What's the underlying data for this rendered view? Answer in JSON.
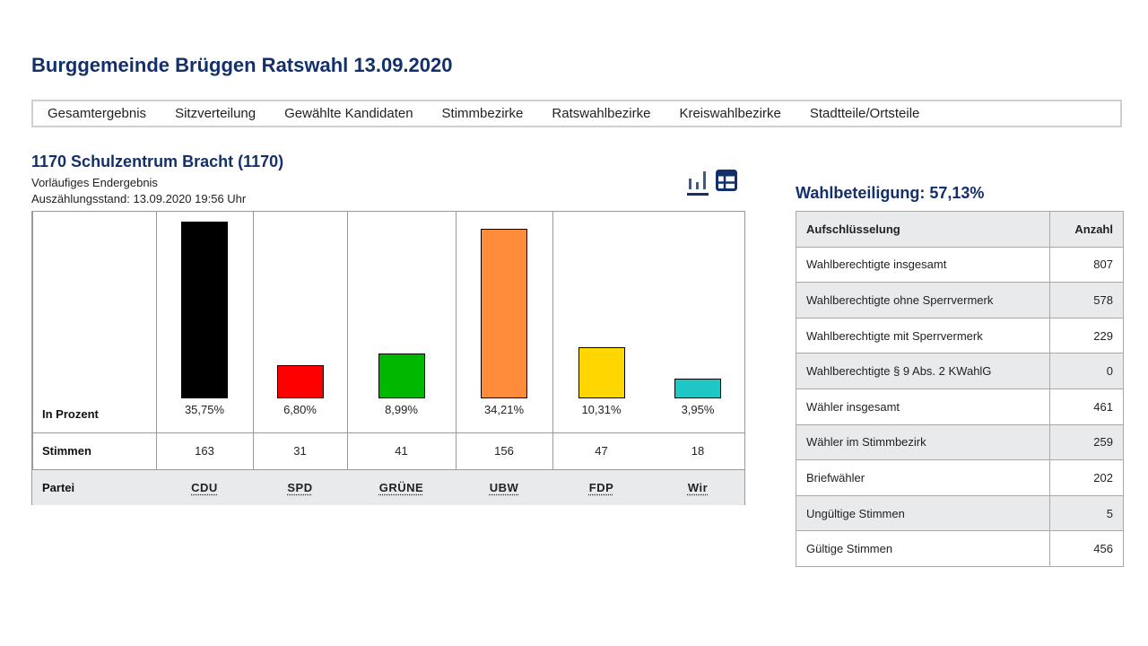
{
  "page": {
    "title": "Burggemeinde Brüggen Ratswahl 13.09.2020"
  },
  "nav": {
    "items": [
      "Gesamtergebnis",
      "Sitzverteilung",
      "Gewählte Kandidaten",
      "Stimmbezirke",
      "Ratswahlbezirke",
      "Kreiswahlbezirke",
      "Stadtteile/Ortsteile"
    ]
  },
  "district": {
    "title": "1170 Schulzentrum Bracht (1170)",
    "status": "Vorläufiges Endergebnis",
    "count_status": "Auszählungsstand: 13.09.2020 19:56 Uhr"
  },
  "icons": {
    "chart": "bar-chart-icon",
    "table": "table-icon"
  },
  "results": {
    "row_labels": {
      "percent": "In Prozent",
      "votes": "Stimmen",
      "party": "Partei"
    }
  },
  "chart_data": {
    "type": "bar",
    "categories": [
      "CDU",
      "SPD",
      "GRÜNE",
      "UBW",
      "FDP",
      "Wir"
    ],
    "values": [
      35.75,
      6.8,
      8.99,
      34.21,
      10.31,
      3.95
    ],
    "value_labels": [
      "35,75%",
      "6,80%",
      "8,99%",
      "34,21%",
      "10,31%",
      "3,95%"
    ],
    "votes": [
      "163",
      "31",
      "41",
      "156",
      "47",
      "18"
    ],
    "colors": [
      "#000000",
      "#ff0000",
      "#00b800",
      "#ff8c3a",
      "#ffd600",
      "#1fc7c4"
    ],
    "ylabel": "In Prozent",
    "ylim": [
      0,
      35.75
    ]
  },
  "turnout": {
    "title": "Wahlbeteiligung: 57,13%",
    "headers": [
      "Aufschlüsselung",
      "Anzahl"
    ],
    "rows": [
      {
        "label": "Wahlberechtigte insgesamt",
        "value": "807"
      },
      {
        "label": "Wahlberechtigte ohne Sperrvermerk",
        "value": "578"
      },
      {
        "label": "Wahlberechtigte mit Sperrvermerk",
        "value": "229"
      },
      {
        "label": "Wahlberechtigte § 9 Abs. 2 KWahlG",
        "value": "0"
      },
      {
        "label": "Wähler insgesamt",
        "value": "461"
      },
      {
        "label": "Wähler im Stimmbezirk",
        "value": "259"
      },
      {
        "label": "Briefwähler",
        "value": "202"
      },
      {
        "label": "Ungültige Stimmen",
        "value": "5"
      },
      {
        "label": "Gültige Stimmen",
        "value": "456"
      }
    ]
  }
}
